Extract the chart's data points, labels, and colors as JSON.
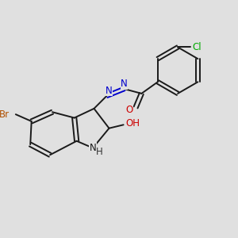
{
  "background_color": "#e0e0e0",
  "bond_color": "#1a1a1a",
  "atom_colors": {
    "Br": "#b05000",
    "Cl": "#00aa00",
    "O": "#cc0000",
    "N": "#0000cc",
    "H": "#333333",
    "C": "#1a1a1a"
  },
  "font_size": 8.5,
  "figsize": [
    3.0,
    3.0
  ],
  "dpi": 100
}
